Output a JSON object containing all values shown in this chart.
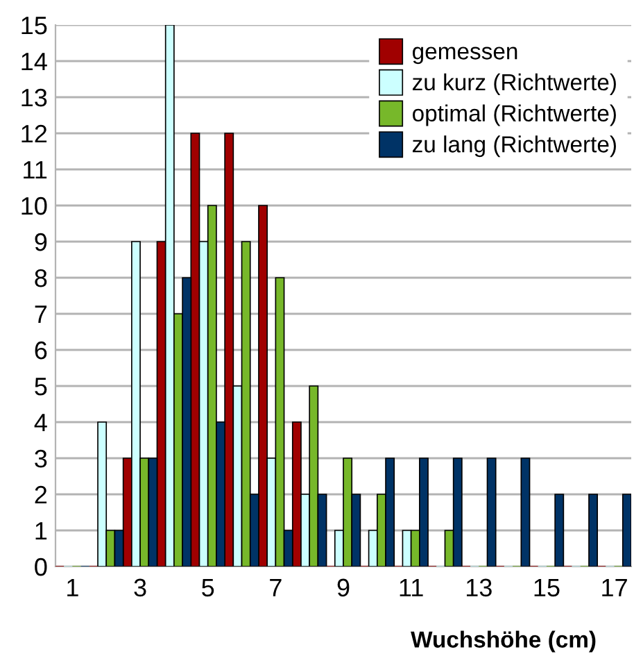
{
  "chart_data": {
    "type": "bar",
    "xlabel": "Wuchshöhe (cm)",
    "categories": [
      "1",
      null,
      "3",
      null,
      "5",
      null,
      "7",
      null,
      "9",
      null,
      "11",
      null,
      "13",
      null,
      "15",
      null,
      "17"
    ],
    "series": [
      {
        "name": "gemessen",
        "color": "#a00000",
        "values": [
          0,
          0,
          3,
          9,
          12,
          12,
          10,
          4,
          0,
          0,
          0,
          0,
          0,
          0,
          0,
          0,
          0
        ]
      },
      {
        "name": "zu kurz (Richtwerte)",
        "color": "#ccffff",
        "values": [
          0,
          4,
          9,
          15,
          9,
          5,
          3,
          2,
          1,
          1,
          1,
          0,
          0,
          0,
          0,
          0,
          0
        ]
      },
      {
        "name": "optimal (Richtwerte)",
        "color": "#77b82a",
        "values": [
          0,
          1,
          3,
          7,
          10,
          9,
          8,
          5,
          3,
          2,
          1,
          1,
          0,
          0,
          0,
          0,
          0
        ]
      },
      {
        "name": "zu lang (Richtwerte)",
        "color": "#003366",
        "values": [
          0,
          1,
          3,
          8,
          4,
          2,
          1,
          2,
          2,
          3,
          3,
          3,
          3,
          3,
          2,
          2,
          2
        ]
      }
    ],
    "ylim": [
      0,
      15
    ],
    "yticks": [
      0,
      1,
      2,
      3,
      4,
      5,
      6,
      7,
      8,
      9,
      10,
      11,
      12,
      13,
      14,
      15
    ],
    "grid": "y",
    "legend": "top right"
  }
}
